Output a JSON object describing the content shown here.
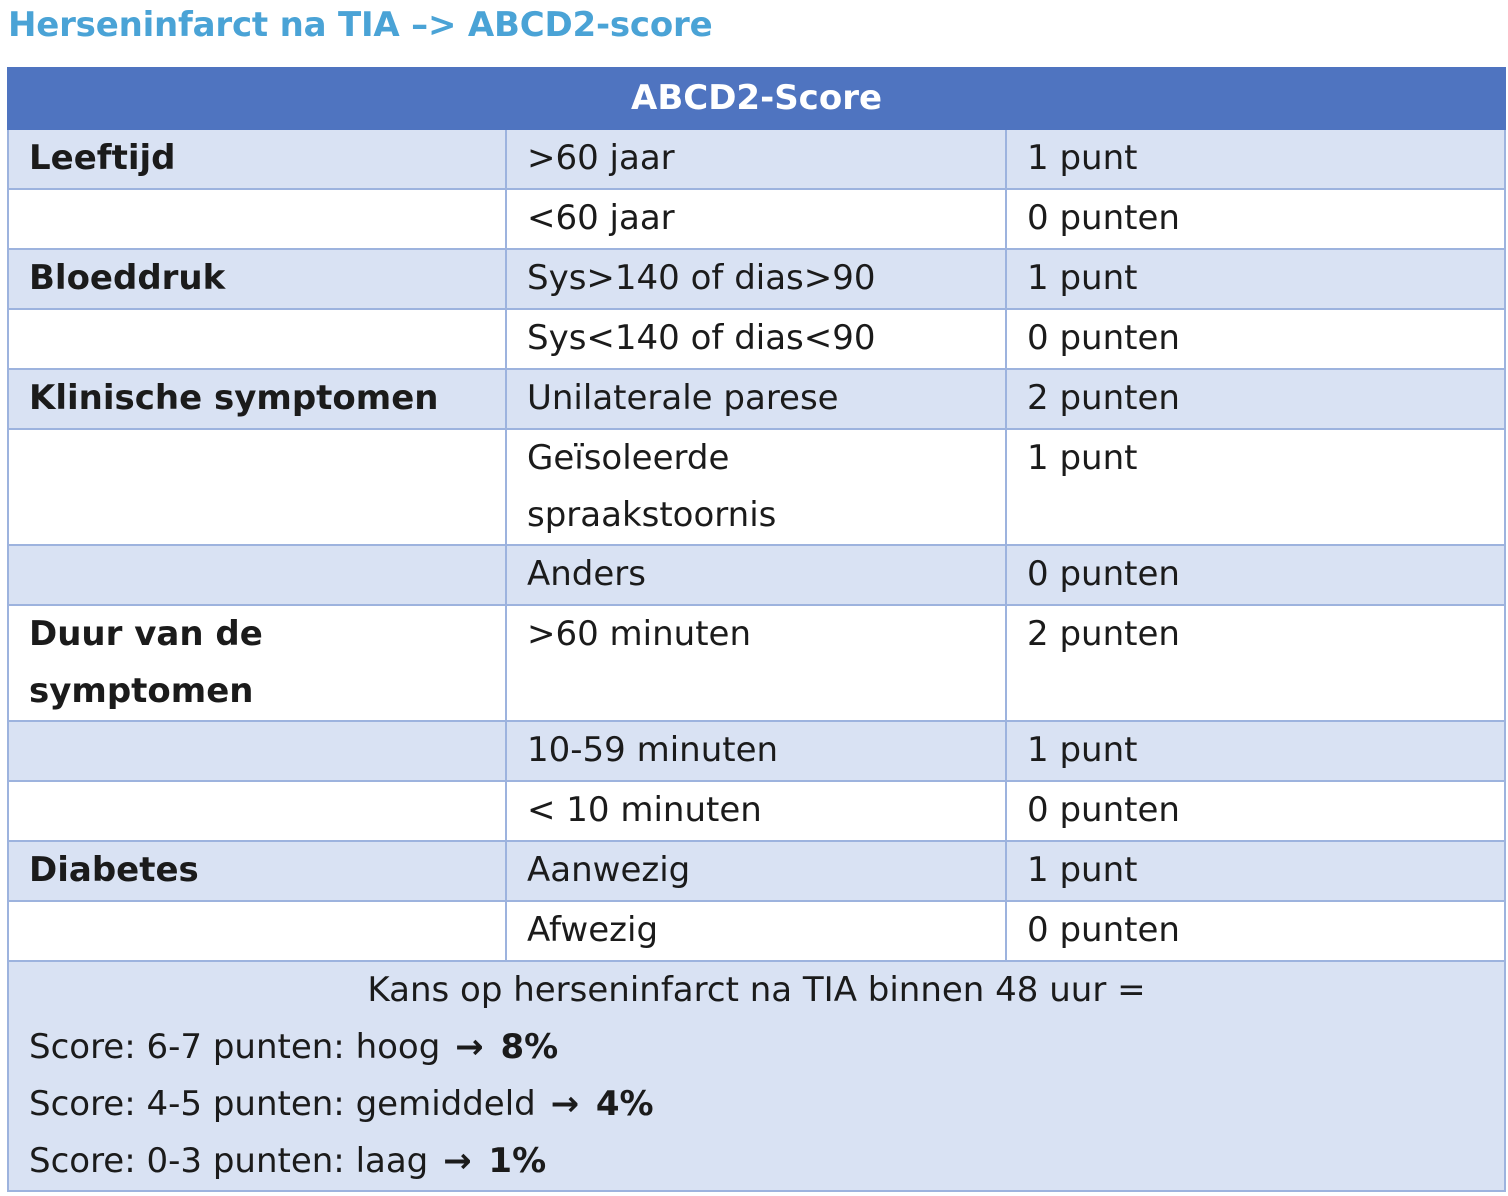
{
  "page_title": "Herseninfarct na TIA –> ABCD2-score",
  "table": {
    "header": "ABCD2-Score",
    "rows": [
      {
        "category": "Leeftijd",
        "criterion": ">60 jaar",
        "points": "1 punt"
      },
      {
        "category": "",
        "criterion": "<60 jaar",
        "points": "0 punten"
      },
      {
        "category": "Bloeddruk",
        "criterion": "Sys>140 of dias>90",
        "points": "1 punt"
      },
      {
        "category": "",
        "criterion": "Sys<140 of dias<90",
        "points": "0 punten"
      },
      {
        "category": "Klinische symptomen",
        "criterion": "Unilaterale parese",
        "points": "2 punten"
      },
      {
        "category": "",
        "criterion": "Geïsoleerde spraakstoornis",
        "points": "1 punt"
      },
      {
        "category": "",
        "criterion": "Anders",
        "points": "0 punten"
      },
      {
        "category": "Duur van de symptomen",
        "criterion": ">60 minuten",
        "points": "2 punten"
      },
      {
        "category": "",
        "criterion": "10-59 minuten",
        "points": "1 punt"
      },
      {
        "category": "",
        "criterion": "< 10 minuten",
        "points": "0 punten"
      },
      {
        "category": "Diabetes",
        "criterion": "Aanwezig",
        "points": "1 punt"
      },
      {
        "category": "",
        "criterion": "Afwezig",
        "points": "0 punten"
      }
    ],
    "footer": {
      "heading": "Kans op herseninfarct na TIA binnen 48 uur =",
      "lines": [
        {
          "text": "Score: 6-7 punten: hoog",
          "arrow_icon": "right-arrow-icon",
          "percentage": "8%"
        },
        {
          "text": "Score: 4-5 punten: gemiddeld",
          "arrow_icon": "right-arrow-icon",
          "percentage": "4%"
        },
        {
          "text": "Score: 0-3 punten: laag",
          "arrow_icon": "right-arrow-icon",
          "percentage": "1%"
        }
      ]
    }
  },
  "colors": {
    "title": "#4aa3d6",
    "header_bg": "#4f74c0",
    "shaded_row": "#d9e2f3",
    "border": "#9db3de"
  }
}
